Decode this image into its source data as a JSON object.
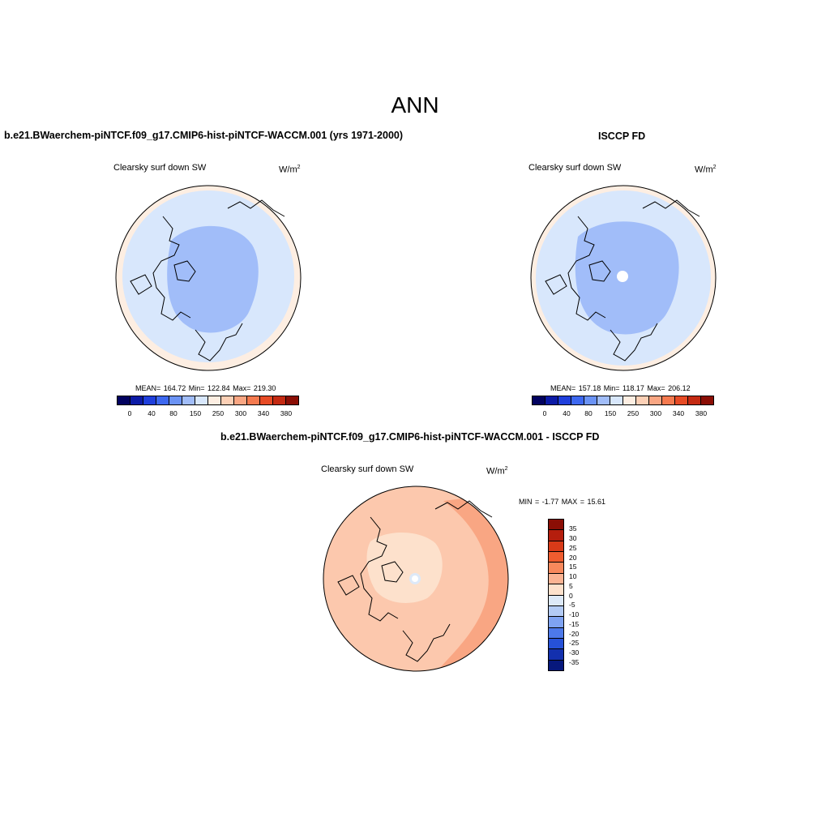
{
  "title": "ANN",
  "colors": {
    "seq": [
      "#02025f",
      "#0c1ba6",
      "#1f3fdc",
      "#3d68f0",
      "#6b93f5",
      "#a1bdf9",
      "#d8e7fc",
      "#fdeee2",
      "#fcd0b6",
      "#f9a683",
      "#f57a4f",
      "#e74b25",
      "#c42a12",
      "#8b0e05"
    ],
    "diff": [
      "#8b0e05",
      "#b51e0d",
      "#d83a18",
      "#ef5c2f",
      "#f8885c",
      "#fbb393",
      "#fde1cc",
      "#dde9f8",
      "#b3cbf5",
      "#7fa3f2",
      "#4d79ea",
      "#2651d8",
      "#1330ae",
      "#07187c"
    ]
  },
  "panels": {
    "left": {
      "case": "b.e21.BWaerchem-piNTCF.f09_g17.CMIP6-hist-piNTCF-WACCM.001 (yrs 1971-2000)",
      "variable": "Clearsky surf down SW",
      "units": "W/m",
      "units_sup": "2",
      "stats": "MEAN= 164.72  Min= 122.84  Max= 219.30",
      "ticks": [
        "0",
        "40",
        "80",
        "150",
        "250",
        "300",
        "340",
        "380"
      ]
    },
    "right": {
      "case": "ISCCP FD",
      "variable": "Clearsky surf down SW",
      "units": "W/m",
      "units_sup": "2",
      "stats": "MEAN= 157.18  Min= 118.17  Max= 206.12",
      "ticks": [
        "0",
        "40",
        "80",
        "150",
        "250",
        "300",
        "340",
        "380"
      ]
    },
    "diff": {
      "case": "b.e21.BWaerchem-piNTCF.f09_g17.CMIP6-hist-piNTCF-WACCM.001 - ISCCP FD",
      "variable": "Clearsky surf down SW",
      "units": "W/m",
      "units_sup": "2",
      "stats": "MIN =  -1.77 MAX =  15.61",
      "ticks": [
        "35",
        "30",
        "25",
        "20",
        "15",
        "10",
        "5",
        "0",
        "-5",
        "-10",
        "-15",
        "-20",
        "-25",
        "-30",
        "-35"
      ]
    }
  }
}
